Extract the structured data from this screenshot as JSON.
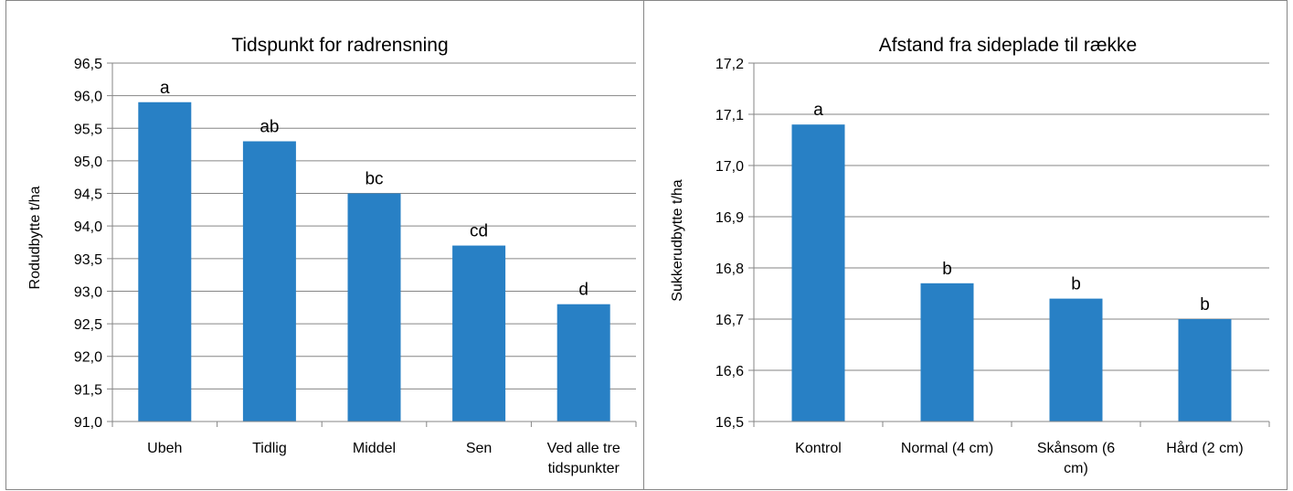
{
  "colors": {
    "bar": "#2880c5",
    "grid": "#868686",
    "text": "#000000"
  },
  "chart_data": [
    {
      "type": "bar",
      "title": "Tidspunkt for radrensning",
      "xlabel": "",
      "ylabel": "Rodudbytte t/ha",
      "categories": [
        "Ubeh",
        "Tidlig",
        "Middel",
        "Sen",
        "Ved alle tre tidspunkter"
      ],
      "category_lines": [
        [
          "Ubeh"
        ],
        [
          "Tidlig"
        ],
        [
          "Middel"
        ],
        [
          "Sen"
        ],
        [
          "Ved alle tre",
          "tidspunkter"
        ]
      ],
      "values": [
        95.9,
        95.3,
        94.5,
        93.7,
        92.8
      ],
      "data_labels": [
        "a",
        "ab",
        "bc",
        "cd",
        "d"
      ],
      "ylim": [
        91.0,
        96.5
      ],
      "yticks": [
        "91,0",
        "91,5",
        "92,0",
        "92,5",
        "93,0",
        "93,5",
        "94,0",
        "94,5",
        "95,0",
        "95,5",
        "96,0",
        "96,5"
      ],
      "grid": true,
      "legend": "none"
    },
    {
      "type": "bar",
      "title": "Afstand fra sideplade til række",
      "xlabel": "",
      "ylabel": "Sukkerudbytte t/ha",
      "categories": [
        "Kontrol",
        "Normal (4 cm)",
        "Skånsom (6 cm)",
        "Hård (2 cm)"
      ],
      "category_lines": [
        [
          "Kontrol"
        ],
        [
          "Normal (4 cm)"
        ],
        [
          "Skånsom (6",
          "cm)"
        ],
        [
          "Hård (2 cm)"
        ]
      ],
      "values": [
        17.08,
        16.77,
        16.74,
        16.7
      ],
      "data_labels": [
        "a",
        "b",
        "b",
        "b"
      ],
      "ylim": [
        16.5,
        17.2
      ],
      "yticks": [
        "16,5",
        "16,6",
        "16,7",
        "16,8",
        "16,9",
        "17,0",
        "17,1",
        "17,2"
      ],
      "grid": true,
      "legend": "none"
    }
  ]
}
